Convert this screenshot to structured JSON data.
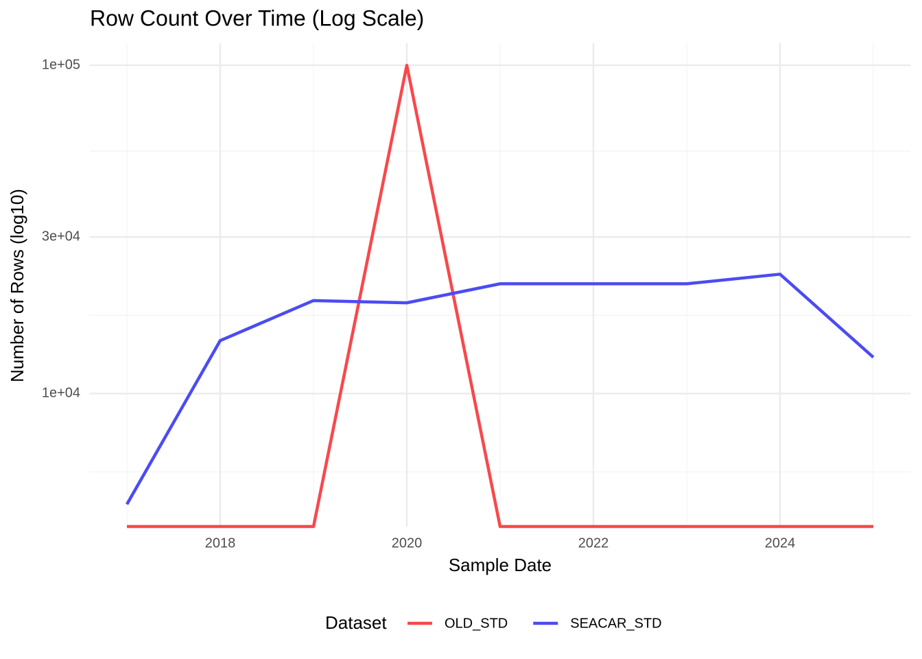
{
  "chart_data": {
    "type": "line",
    "title": "Row Count Over Time (Log Scale)",
    "x_label": "Sample Date",
    "y_label": "Number of Rows (log10)",
    "x": [
      2017,
      2018,
      2019,
      2020,
      2021,
      2022,
      2023,
      2024,
      2025
    ],
    "series": [
      {
        "name": "OLD_STD",
        "color": "#f8484c",
        "values": [
          0,
          0,
          0,
          100000,
          0,
          0,
          0,
          0,
          0
        ]
      },
      {
        "name": "SEACAR_STD",
        "color": "#4b4bf5",
        "values": [
          4600,
          14500,
          19200,
          18900,
          21600,
          21600,
          21600,
          23100,
          12900
        ]
      }
    ],
    "xlim": [
      2016.6,
      2025.4
    ],
    "xticks": [
      2018,
      2020,
      2022,
      2024
    ],
    "ylim": [
      3936,
      116700
    ],
    "yticks": [
      {
        "value": 10000,
        "label": "1e+04"
      },
      {
        "value": 30000,
        "label": "3e+04"
      },
      {
        "value": 100000,
        "label": "1e+05"
      }
    ],
    "log_y": true,
    "grid": true,
    "legend_title": "Dataset",
    "legend_position": "bottom"
  }
}
